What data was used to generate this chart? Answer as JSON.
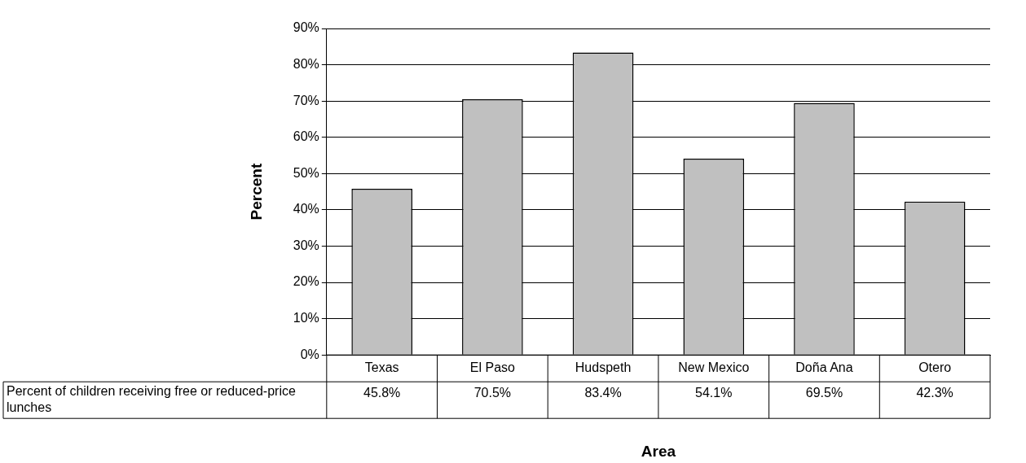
{
  "chart_data": {
    "type": "bar",
    "xlabel": "Area",
    "ylabel": "Percent",
    "categories": [
      "Texas",
      "El Paso",
      "Hudspeth",
      "New Mexico",
      "Doña Ana",
      "Otero"
    ],
    "series": [
      {
        "name": "Percent of children receiving free or reduced-price lunches",
        "color": "#c0c0c0",
        "values": [
          45.8,
          70.5,
          83.4,
          54.1,
          69.5,
          42.3
        ],
        "value_labels": [
          "45.8%",
          "70.5%",
          "83.4%",
          "54.1%",
          "69.5%",
          "42.3%"
        ]
      }
    ],
    "ylim": [
      0,
      90
    ],
    "yticks": [
      {
        "value": 0,
        "label": "0%"
      },
      {
        "value": 10,
        "label": "10%"
      },
      {
        "value": 20,
        "label": "20%"
      },
      {
        "value": 30,
        "label": "30%"
      },
      {
        "value": 40,
        "label": "40%"
      },
      {
        "value": 50,
        "label": "50%"
      },
      {
        "value": 60,
        "label": "60%"
      },
      {
        "value": 70,
        "label": "70%"
      },
      {
        "value": 80,
        "label": "80%"
      },
      {
        "value": 90,
        "label": "90%"
      }
    ],
    "grid": "y",
    "legend": false
  }
}
